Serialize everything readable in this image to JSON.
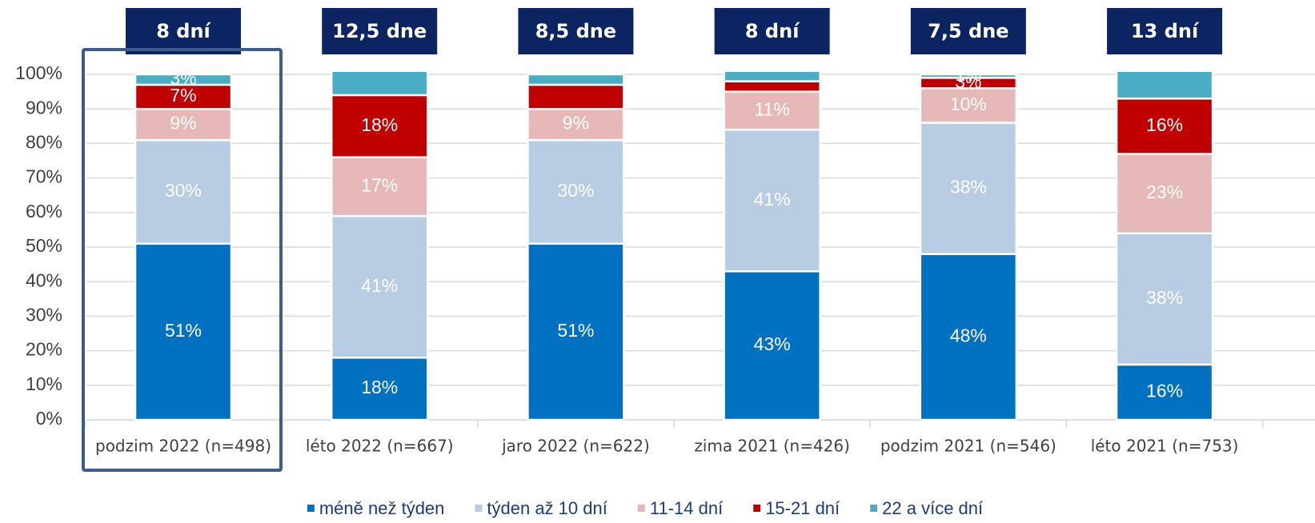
{
  "chart_data": {
    "type": "stacked_bar",
    "categories": [
      "podzim 2022 (n=498)",
      "léto 2022 (n=667)",
      "jaro 2022 (n=622)",
      "zima 2021 (n=426)",
      "podzim 2021 (n=546)",
      "léto 2021 (n=753)"
    ],
    "bar_headers": [
      "8 dní",
      "12,5 dne",
      "8,5 dne",
      "8 dní",
      "7,5 dne",
      "13 dní"
    ],
    "series": [
      {
        "name": "méně než týden",
        "color": "#0070c0",
        "values": [
          51,
          18,
          51,
          43,
          48,
          16
        ],
        "value_labels": [
          "51%",
          "18%",
          "51%",
          "43%",
          "48%",
          "16%"
        ]
      },
      {
        "name": "týden až 10 dní",
        "color": "#b8cce4",
        "values": [
          30,
          41,
          30,
          41,
          38,
          38
        ],
        "value_labels": [
          "30%",
          "41%",
          "30%",
          "41%",
          "38%",
          "38%"
        ]
      },
      {
        "name": "11-14 dní",
        "color": "#e6b9b8",
        "values": [
          9,
          17,
          9,
          11,
          10,
          23
        ],
        "value_labels": [
          "9%",
          "17%",
          "9%",
          "11%",
          "10%",
          "23%"
        ]
      },
      {
        "name": "15-21 dní",
        "color": "#c00000",
        "values": [
          7,
          18,
          7,
          3,
          3,
          16
        ],
        "value_labels": [
          "7%",
          "18%",
          null,
          null,
          "3%",
          "16%"
        ]
      },
      {
        "name": "22 a více dní",
        "color": "#4bacc6",
        "values": [
          3,
          7,
          3,
          3,
          1,
          8
        ],
        "value_labels": [
          "3%",
          null,
          null,
          null,
          "1%",
          null
        ]
      }
    ],
    "ylim": [
      0,
      100
    ],
    "yticks": [
      {
        "value": 0,
        "label": "0%"
      },
      {
        "value": 10,
        "label": "10%"
      },
      {
        "value": 20,
        "label": "20%"
      },
      {
        "value": 30,
        "label": "30%"
      },
      {
        "value": 40,
        "label": "40%"
      },
      {
        "value": 50,
        "label": "50%"
      },
      {
        "value": 60,
        "label": "60%"
      },
      {
        "value": 70,
        "label": "70%"
      },
      {
        "value": 80,
        "label": "80%"
      },
      {
        "value": 90,
        "label": "90%"
      },
      {
        "value": 100,
        "label": "100%"
      }
    ],
    "grid": true,
    "highlight_category": 0,
    "header_color": "#0c2461"
  }
}
